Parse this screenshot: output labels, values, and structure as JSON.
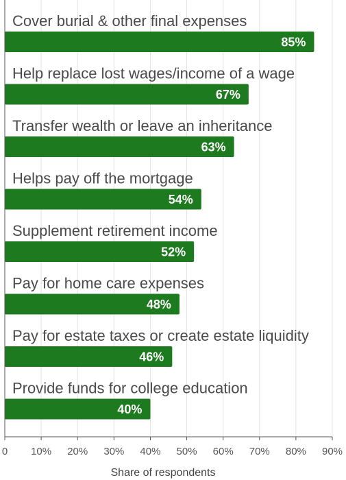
{
  "chart_data": {
    "type": "bar",
    "orientation": "horizontal",
    "categories": [
      "Cover burial & other final expenses",
      "Help replace lost wages/income of a wage",
      "Transfer wealth or leave an inheritance",
      "Helps pay off the mortgage",
      "Supplement retirement income",
      "Pay for home care expenses",
      "Pay for estate taxes or create estate liquidity",
      "Provide funds for college education"
    ],
    "values": [
      85,
      67,
      63,
      54,
      52,
      48,
      46,
      40
    ],
    "value_labels": [
      "85%",
      "67%",
      "63%",
      "54%",
      "52%",
      "48%",
      "46%",
      "40%"
    ],
    "xlabel": "Share of respondents",
    "ylabel": "",
    "xlim": [
      0,
      90
    ],
    "ticks": [
      0,
      10,
      20,
      30,
      40,
      50,
      60,
      70,
      80,
      90
    ],
    "tick_labels": [
      "0",
      "10%",
      "20%",
      "30%",
      "40%",
      "50%",
      "60%",
      "70%",
      "80%",
      "90%"
    ],
    "grid": "vertical",
    "legend": "none",
    "colors": {
      "bar": "#1e7a1e",
      "grid": "#e3e3e3",
      "axis": "#555555"
    }
  }
}
